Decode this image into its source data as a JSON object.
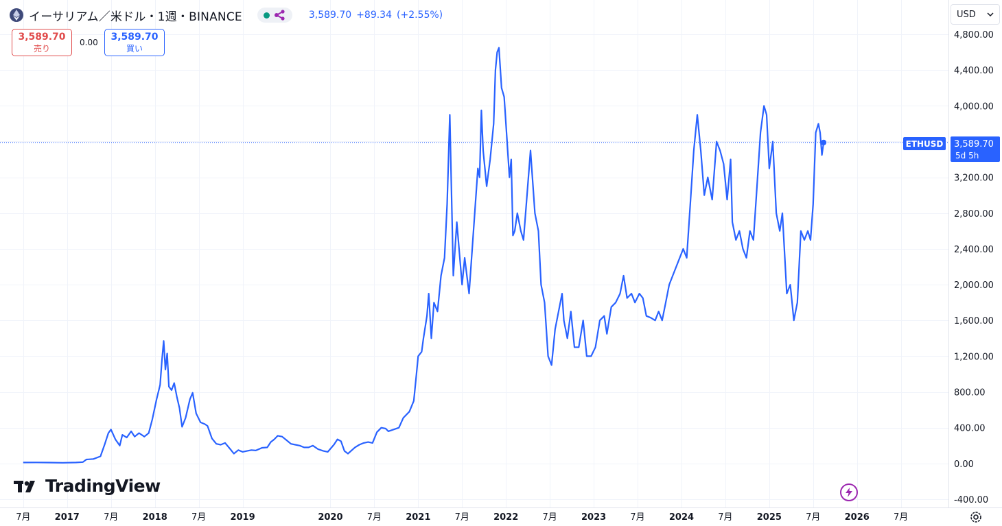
{
  "legend": {
    "symbol_title": "イーサリアム／米ドル・1週・BINANCE",
    "last_price": "3,589.70",
    "change": "+89.34",
    "change_pct": "(+2.55%)",
    "status_color": "#089981",
    "accent": "#2962ff"
  },
  "trade": {
    "sell_price": "3,589.70",
    "sell_label": "売り",
    "spread": "0.00",
    "buy_price": "3,589.70",
    "buy_label": "買い"
  },
  "currency": {
    "label": "USD",
    "icon": "chevron-down-icon"
  },
  "price_tag": {
    "symbol": "ETHUSD",
    "price": "3,589.70",
    "countdown": "5d 5h"
  },
  "branding": {
    "name": "TradingView"
  },
  "chart_data": {
    "type": "line",
    "series_color": "#2962ff",
    "grid": true,
    "current_price": 3589.7,
    "y_ticks": [
      4800,
      4400,
      4000,
      3600,
      3200,
      2800,
      2400,
      2000,
      1600,
      1200,
      800,
      400,
      0,
      -400
    ],
    "y_tick_labels": [
      "4,800.00",
      "4,400.00",
      "4,000.00",
      "",
      "3,200.00",
      "2,800.00",
      "2,400.00",
      "2,000.00",
      "1,600.00",
      "1,200.00",
      "800.00",
      "400.00",
      "0.00",
      "-400.00"
    ],
    "ylim": [
      -400,
      4800
    ],
    "xlim": [
      2016.47,
      2026.87
    ],
    "x_ticks": [
      {
        "t": 2016.5,
        "label": "7月",
        "bold": false
      },
      {
        "t": 2017.0,
        "label": "2017",
        "bold": true
      },
      {
        "t": 2017.5,
        "label": "7月",
        "bold": false
      },
      {
        "t": 2018.0,
        "label": "2018",
        "bold": true
      },
      {
        "t": 2018.5,
        "label": "7月",
        "bold": false
      },
      {
        "t": 2019.0,
        "label": "2019",
        "bold": true
      },
      {
        "t": 2020.0,
        "label": "2020",
        "bold": true
      },
      {
        "t": 2020.5,
        "label": "7月",
        "bold": false
      },
      {
        "t": 2021.0,
        "label": "2021",
        "bold": true
      },
      {
        "t": 2021.5,
        "label": "7月",
        "bold": false
      },
      {
        "t": 2022.0,
        "label": "2022",
        "bold": true
      },
      {
        "t": 2022.5,
        "label": "7月",
        "bold": false
      },
      {
        "t": 2023.0,
        "label": "2023",
        "bold": true
      },
      {
        "t": 2023.5,
        "label": "7月",
        "bold": false
      },
      {
        "t": 2024.0,
        "label": "2024",
        "bold": true
      },
      {
        "t": 2024.5,
        "label": "7月",
        "bold": false
      },
      {
        "t": 2025.0,
        "label": "2025",
        "bold": true
      },
      {
        "t": 2025.5,
        "label": "7月",
        "bold": false
      },
      {
        "t": 2026.0,
        "label": "2026",
        "bold": true
      },
      {
        "t": 2026.5,
        "label": "7月",
        "bold": false
      }
    ],
    "series": [
      {
        "points": [
          [
            2016.5,
            11
          ],
          [
            2016.65,
            12
          ],
          [
            2016.8,
            10
          ],
          [
            2016.95,
            8
          ],
          [
            2017.1,
            11
          ],
          [
            2017.18,
            16
          ],
          [
            2017.22,
            45
          ],
          [
            2017.3,
            50
          ],
          [
            2017.38,
            80
          ],
          [
            2017.43,
            220
          ],
          [
            2017.47,
            340
          ],
          [
            2017.5,
            380
          ],
          [
            2017.55,
            270
          ],
          [
            2017.6,
            200
          ],
          [
            2017.63,
            320
          ],
          [
            2017.68,
            290
          ],
          [
            2017.73,
            360
          ],
          [
            2017.77,
            300
          ],
          [
            2017.82,
            340
          ],
          [
            2017.88,
            300
          ],
          [
            2017.93,
            340
          ],
          [
            2017.97,
            490
          ],
          [
            2018.02,
            720
          ],
          [
            2018.06,
            880
          ],
          [
            2018.08,
            1150
          ],
          [
            2018.1,
            1370
          ],
          [
            2018.12,
            1050
          ],
          [
            2018.14,
            1230
          ],
          [
            2018.16,
            860
          ],
          [
            2018.19,
            820
          ],
          [
            2018.22,
            900
          ],
          [
            2018.25,
            750
          ],
          [
            2018.28,
            620
          ],
          [
            2018.31,
            410
          ],
          [
            2018.35,
            510
          ],
          [
            2018.4,
            720
          ],
          [
            2018.43,
            790
          ],
          [
            2018.47,
            560
          ],
          [
            2018.52,
            460
          ],
          [
            2018.57,
            440
          ],
          [
            2018.6,
            420
          ],
          [
            2018.65,
            280
          ],
          [
            2018.7,
            220
          ],
          [
            2018.75,
            210
          ],
          [
            2018.8,
            230
          ],
          [
            2018.86,
            160
          ],
          [
            2018.9,
            110
          ],
          [
            2018.95,
            150
          ],
          [
            2019.0,
            130
          ],
          [
            2019.05,
            140
          ],
          [
            2019.1,
            150
          ],
          [
            2019.15,
            145
          ],
          [
            2019.22,
            175
          ],
          [
            2019.28,
            180
          ],
          [
            2019.32,
            240
          ],
          [
            2019.36,
            270
          ],
          [
            2019.4,
            310
          ],
          [
            2019.45,
            300
          ],
          [
            2019.5,
            260
          ],
          [
            2019.55,
            220
          ],
          [
            2019.6,
            210
          ],
          [
            2019.65,
            200
          ],
          [
            2019.7,
            180
          ],
          [
            2019.75,
            180
          ],
          [
            2019.8,
            200
          ],
          [
            2019.86,
            160
          ],
          [
            2019.92,
            140
          ],
          [
            2019.97,
            130
          ],
          [
            2020.04,
            210
          ],
          [
            2020.08,
            270
          ],
          [
            2020.12,
            250
          ],
          [
            2020.16,
            140
          ],
          [
            2020.2,
            110
          ],
          [
            2020.28,
            180
          ],
          [
            2020.33,
            210
          ],
          [
            2020.38,
            230
          ],
          [
            2020.43,
            240
          ],
          [
            2020.48,
            230
          ],
          [
            2020.53,
            350
          ],
          [
            2020.58,
            400
          ],
          [
            2020.63,
            390
          ],
          [
            2020.66,
            360
          ],
          [
            2020.72,
            380
          ],
          [
            2020.78,
            400
          ],
          [
            2020.83,
            510
          ],
          [
            2020.9,
            580
          ],
          [
            2020.95,
            700
          ],
          [
            2020.98,
            1000
          ],
          [
            2021.0,
            1200
          ],
          [
            2021.04,
            1250
          ],
          [
            2021.06,
            1400
          ],
          [
            2021.1,
            1650
          ],
          [
            2021.12,
            1900
          ],
          [
            2021.15,
            1400
          ],
          [
            2021.18,
            1800
          ],
          [
            2021.22,
            1700
          ],
          [
            2021.26,
            2100
          ],
          [
            2021.3,
            2300
          ],
          [
            2021.33,
            2900
          ],
          [
            2021.36,
            3900
          ],
          [
            2021.4,
            2100
          ],
          [
            2021.44,
            2700
          ],
          [
            2021.5,
            2000
          ],
          [
            2021.53,
            2300
          ],
          [
            2021.58,
            1900
          ],
          [
            2021.63,
            2600
          ],
          [
            2021.68,
            3300
          ],
          [
            2021.7,
            3200
          ],
          [
            2021.72,
            3950
          ],
          [
            2021.74,
            3500
          ],
          [
            2021.78,
            3100
          ],
          [
            2021.82,
            3400
          ],
          [
            2021.86,
            3800
          ],
          [
            2021.88,
            4400
          ],
          [
            2021.9,
            4600
          ],
          [
            2021.92,
            4650
          ],
          [
            2021.95,
            4200
          ],
          [
            2021.98,
            4100
          ],
          [
            2022.0,
            3800
          ],
          [
            2022.04,
            3200
          ],
          [
            2022.06,
            3400
          ],
          [
            2022.08,
            2550
          ],
          [
            2022.1,
            2600
          ],
          [
            2022.13,
            2800
          ],
          [
            2022.17,
            2600
          ],
          [
            2022.2,
            2500
          ],
          [
            2022.24,
            3000
          ],
          [
            2022.28,
            3500
          ],
          [
            2022.33,
            2800
          ],
          [
            2022.37,
            2600
          ],
          [
            2022.4,
            2000
          ],
          [
            2022.44,
            1800
          ],
          [
            2022.48,
            1200
          ],
          [
            2022.52,
            1100
          ],
          [
            2022.56,
            1500
          ],
          [
            2022.6,
            1700
          ],
          [
            2022.64,
            1900
          ],
          [
            2022.66,
            1600
          ],
          [
            2022.7,
            1400
          ],
          [
            2022.74,
            1700
          ],
          [
            2022.78,
            1300
          ],
          [
            2022.83,
            1300
          ],
          [
            2022.88,
            1600
          ],
          [
            2022.92,
            1200
          ],
          [
            2022.97,
            1200
          ],
          [
            2023.02,
            1300
          ],
          [
            2023.07,
            1600
          ],
          [
            2023.12,
            1650
          ],
          [
            2023.15,
            1450
          ],
          [
            2023.2,
            1750
          ],
          [
            2023.25,
            1800
          ],
          [
            2023.3,
            1900
          ],
          [
            2023.34,
            2100
          ],
          [
            2023.38,
            1850
          ],
          [
            2023.43,
            1900
          ],
          [
            2023.47,
            1800
          ],
          [
            2023.52,
            1900
          ],
          [
            2023.56,
            1850
          ],
          [
            2023.6,
            1650
          ],
          [
            2023.65,
            1630
          ],
          [
            2023.7,
            1600
          ],
          [
            2023.74,
            1700
          ],
          [
            2023.78,
            1600
          ],
          [
            2023.82,
            1800
          ],
          [
            2023.86,
            2000
          ],
          [
            2023.9,
            2100
          ],
          [
            2023.94,
            2200
          ],
          [
            2023.98,
            2300
          ],
          [
            2024.02,
            2400
          ],
          [
            2024.06,
            2300
          ],
          [
            2024.1,
            2900
          ],
          [
            2024.14,
            3500
          ],
          [
            2024.18,
            3900
          ],
          [
            2024.22,
            3500
          ],
          [
            2024.26,
            3000
          ],
          [
            2024.3,
            3200
          ],
          [
            2024.35,
            2950
          ],
          [
            2024.4,
            3600
          ],
          [
            2024.44,
            3500
          ],
          [
            2024.48,
            3350
          ],
          [
            2024.52,
            2950
          ],
          [
            2024.56,
            3400
          ],
          [
            2024.58,
            2700
          ],
          [
            2024.62,
            2500
          ],
          [
            2024.66,
            2600
          ],
          [
            2024.7,
            2400
          ],
          [
            2024.74,
            2300
          ],
          [
            2024.78,
            2600
          ],
          [
            2024.82,
            2500
          ],
          [
            2024.86,
            3100
          ],
          [
            2024.9,
            3700
          ],
          [
            2024.94,
            4000
          ],
          [
            2024.97,
            3900
          ],
          [
            2025.0,
            3300
          ],
          [
            2025.04,
            3600
          ],
          [
            2025.08,
            2800
          ],
          [
            2025.12,
            2600
          ],
          [
            2025.15,
            2800
          ],
          [
            2025.2,
            1900
          ],
          [
            2025.24,
            2000
          ],
          [
            2025.28,
            1600
          ],
          [
            2025.32,
            1800
          ],
          [
            2025.36,
            2600
          ],
          [
            2025.4,
            2500
          ],
          [
            2025.44,
            2600
          ],
          [
            2025.47,
            2500
          ],
          [
            2025.5,
            2900
          ],
          [
            2025.53,
            3700
          ],
          [
            2025.56,
            3800
          ],
          [
            2025.58,
            3700
          ],
          [
            2025.6,
            3450
          ],
          [
            2025.62,
            3590
          ]
        ]
      }
    ]
  }
}
